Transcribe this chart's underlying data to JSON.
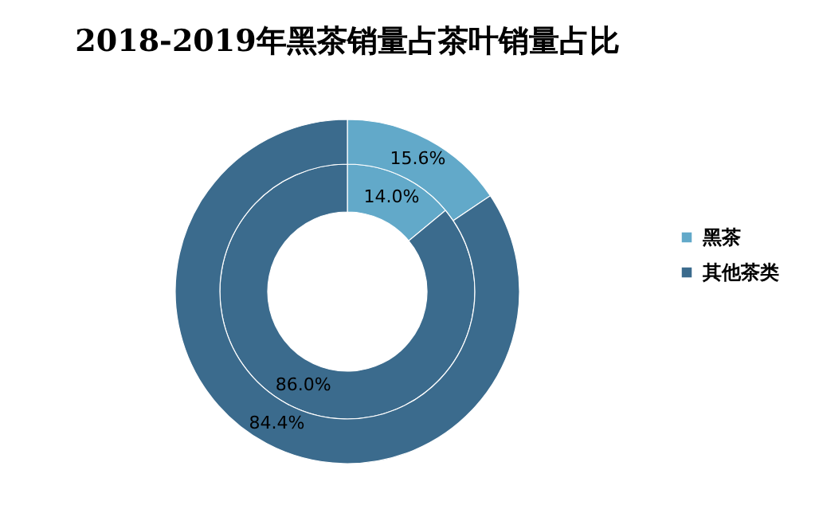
{
  "chart_data": {
    "type": "donut",
    "title": "2018-2019年黑茶销量占茶叶销量占比",
    "categories": [
      "黑茶",
      "其他茶类"
    ],
    "colors": [
      "#62a9c9",
      "#3b6b8d"
    ],
    "series": [
      {
        "values": [
          14.0,
          86.0
        ],
        "value_labels": [
          "14.0%",
          "86.0%"
        ]
      },
      {
        "values": [
          15.6,
          84.4
        ],
        "value_labels": [
          "15.6%",
          "84.4%"
        ]
      }
    ],
    "legend": "right"
  }
}
